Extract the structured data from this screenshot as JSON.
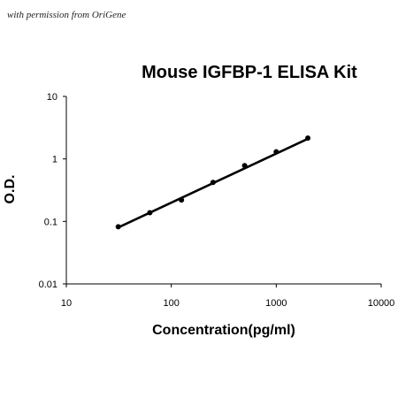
{
  "watermark": "with permission from OriGene",
  "chart_data": {
    "type": "scatter",
    "title": "Mouse IGFBP-1 ELISA Kit",
    "xlabel": "Concentration(pg/ml)",
    "ylabel": "O.D.",
    "x_scale": "log",
    "y_scale": "log",
    "xlim": [
      10,
      10000
    ],
    "ylim": [
      0.01,
      10
    ],
    "x_ticks": [
      10,
      100,
      1000,
      10000
    ],
    "x_tick_labels": [
      "10",
      "100",
      "1000",
      "10000"
    ],
    "y_ticks": [
      0.01,
      0.1,
      1,
      10
    ],
    "y_tick_labels": [
      "0.01",
      "0.1",
      "1",
      "10"
    ],
    "grid": false,
    "series": [
      {
        "x": [
          31.25,
          62.5,
          125,
          250,
          500,
          1000,
          2000
        ],
        "y": [
          0.082,
          0.138,
          0.22,
          0.42,
          0.78,
          1.3,
          2.15
        ]
      }
    ],
    "fit_line": {
      "x": [
        31.25,
        2000
      ],
      "y": [
        0.08,
        2.1
      ]
    },
    "colors": {
      "line": "#000000",
      "points": "#000000",
      "axes": "#000000"
    }
  }
}
